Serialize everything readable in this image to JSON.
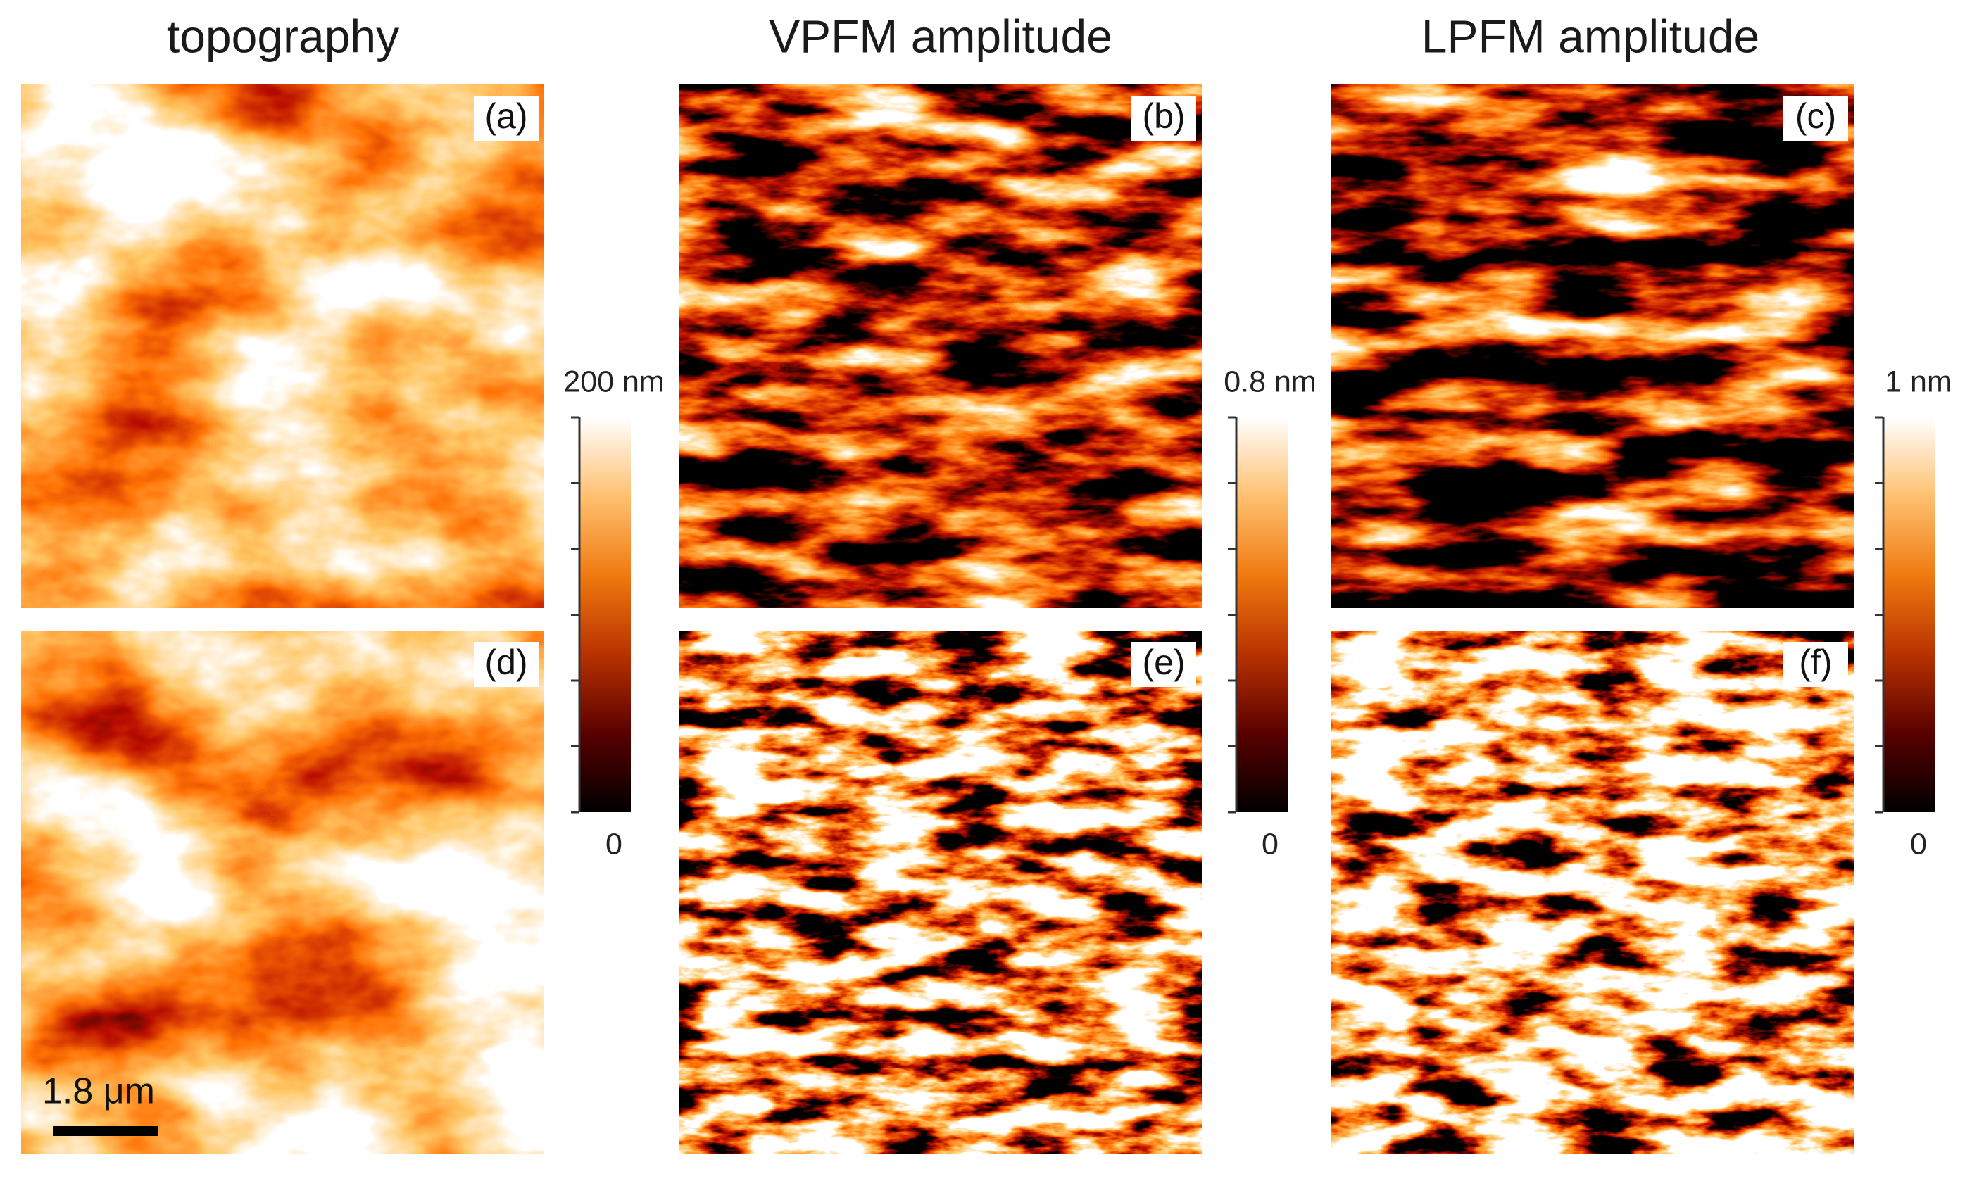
{
  "column_titles": [
    "topography",
    "VPFM amplitude",
    "LPFM amplitude"
  ],
  "panels": [
    {
      "label": "(a)"
    },
    {
      "label": "(b)"
    },
    {
      "label": "(c)"
    },
    {
      "label": "(d)"
    },
    {
      "label": "(e)"
    },
    {
      "label": "(f)"
    }
  ],
  "colorbars": [
    {
      "max_label": "200 nm",
      "min_label": "0"
    },
    {
      "max_label": "0.8 nm",
      "min_label": "0"
    },
    {
      "max_label": "1 nm",
      "min_label": "0"
    }
  ],
  "scale_bar": {
    "label": "1.8 μm"
  }
}
